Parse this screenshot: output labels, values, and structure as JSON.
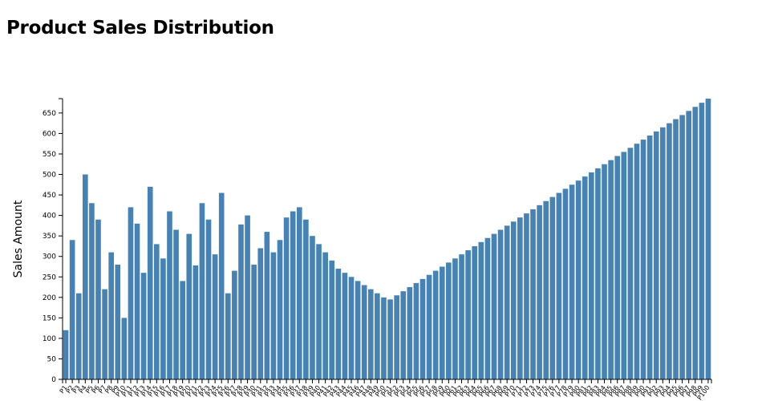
{
  "chart_data": {
    "type": "bar",
    "title": "Product Sales Distribution",
    "xlabel": "",
    "ylabel": "Sales Amount",
    "ylim": [
      0,
      685
    ],
    "yticks": [
      0,
      50,
      100,
      150,
      200,
      250,
      300,
      350,
      400,
      450,
      500,
      550,
      600,
      650
    ],
    "grid": false,
    "legend": "none",
    "bar_color": "#4682b4",
    "categories": [
      "P1",
      "P2",
      "P3",
      "P4",
      "P5",
      "P6",
      "P7",
      "P8",
      "P9",
      "P10",
      "P11",
      "P12",
      "P13",
      "P14",
      "P15",
      "P16",
      "P17",
      "P18",
      "P19",
      "P20",
      "P21",
      "P22",
      "P23",
      "P24",
      "P25",
      "P26",
      "P27",
      "P28",
      "P29",
      "P30",
      "P31",
      "P32",
      "P33",
      "P34",
      "P35",
      "P36",
      "P37",
      "P38",
      "P39",
      "P40",
      "P41",
      "P42",
      "P43",
      "P44",
      "P45",
      "P46",
      "P47",
      "P48",
      "P49",
      "P50",
      "P51",
      "P52",
      "P53",
      "P54",
      "P55",
      "P56",
      "P57",
      "P58",
      "P59",
      "P60",
      "P61",
      "P62",
      "P63",
      "P64",
      "P65",
      "P66",
      "P67",
      "P68",
      "P69",
      "P70",
      "P71",
      "P72",
      "P73",
      "P74",
      "P75",
      "P76",
      "P77",
      "P78",
      "P79",
      "P80",
      "P81",
      "P82",
      "P83",
      "P84",
      "P85",
      "P86",
      "P87",
      "P88",
      "P89",
      "P90",
      "P91",
      "P92",
      "P93",
      "P94",
      "P95",
      "P96",
      "P97",
      "P98",
      "P99",
      "P100"
    ],
    "values": [
      120,
      340,
      210,
      500,
      430,
      390,
      220,
      310,
      280,
      150,
      420,
      380,
      260,
      470,
      330,
      295,
      410,
      365,
      240,
      355,
      278,
      430,
      390,
      305,
      455,
      210,
      265,
      378,
      400,
      280,
      320,
      360,
      310,
      340,
      395,
      410,
      420,
      390,
      350,
      330,
      310,
      290,
      270,
      260,
      250,
      240,
      230,
      220,
      210,
      200,
      195,
      205,
      215,
      225,
      235,
      245,
      255,
      265,
      275,
      285,
      295,
      305,
      315,
      325,
      335,
      345,
      355,
      365,
      375,
      385,
      395,
      405,
      415,
      425,
      435,
      445,
      455,
      465,
      475,
      485,
      495,
      505,
      515,
      525,
      535,
      545,
      555,
      565,
      575,
      585,
      595,
      605,
      615,
      625,
      635,
      645,
      655,
      665,
      675,
      685
    ]
  }
}
